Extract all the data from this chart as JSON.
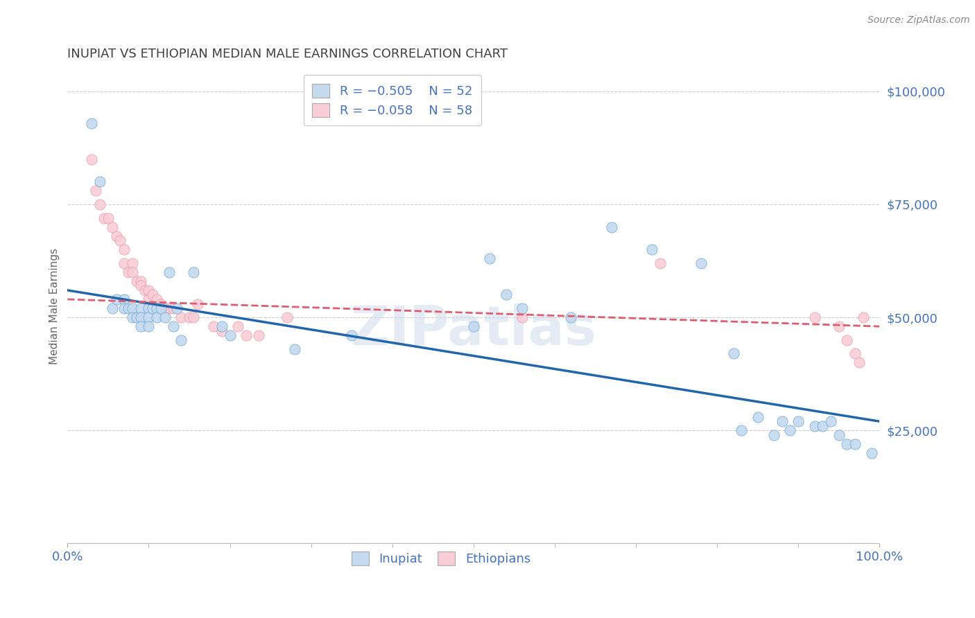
{
  "title": "INUPIAT VS ETHIOPIAN MEDIAN MALE EARNINGS CORRELATION CHART",
  "source": "Source: ZipAtlas.com",
  "ylabel": "Median Male Earnings",
  "watermark": "ZIPatlas",
  "xmin": 0.0,
  "xmax": 1.0,
  "ymin": 0,
  "ymax": 105000,
  "yticks": [
    25000,
    50000,
    75000,
    100000
  ],
  "ytick_labels": [
    "$25,000",
    "$50,000",
    "$75,000",
    "$100,000"
  ],
  "xtick_labels": [
    "0.0%",
    "100.0%"
  ],
  "legend_label1": "Inupiat",
  "legend_label2": "Ethiopians",
  "color_inupiat_fill": "#c5d9ef",
  "color_ethiopian_fill": "#f9cdd6",
  "color_inupiat_edge": "#5a9fd4",
  "color_ethiopian_edge": "#e891a3",
  "color_inupiat_line": "#2166ac",
  "color_ethiopian_line": "#e05c6e",
  "title_color": "#404040",
  "axis_label_color": "#666666",
  "tick_label_color": "#4472c4",
  "background_color": "#ffffff",
  "grid_color": "#cccccc",
  "inupiat_x": [
    0.03,
    0.04,
    0.055,
    0.06,
    0.07,
    0.07,
    0.075,
    0.08,
    0.08,
    0.085,
    0.09,
    0.09,
    0.09,
    0.1,
    0.1,
    0.1,
    0.105,
    0.11,
    0.11,
    0.115,
    0.12,
    0.125,
    0.13,
    0.135,
    0.14,
    0.155,
    0.19,
    0.2,
    0.28,
    0.35,
    0.5,
    0.52,
    0.54,
    0.56,
    0.62,
    0.67,
    0.72,
    0.78,
    0.82,
    0.83,
    0.85,
    0.87,
    0.88,
    0.89,
    0.9,
    0.92,
    0.93,
    0.94,
    0.95,
    0.96,
    0.97,
    0.99
  ],
  "inupiat_y": [
    93000,
    80000,
    52000,
    54000,
    54000,
    52000,
    52000,
    52000,
    50000,
    50000,
    52000,
    50000,
    48000,
    52000,
    50000,
    48000,
    52000,
    52000,
    50000,
    52000,
    50000,
    60000,
    48000,
    52000,
    45000,
    60000,
    48000,
    46000,
    43000,
    46000,
    48000,
    63000,
    55000,
    52000,
    50000,
    70000,
    65000,
    62000,
    42000,
    25000,
    28000,
    24000,
    27000,
    25000,
    27000,
    26000,
    26000,
    27000,
    24000,
    22000,
    22000,
    20000
  ],
  "ethiopian_x": [
    0.03,
    0.035,
    0.04,
    0.045,
    0.05,
    0.055,
    0.06,
    0.065,
    0.07,
    0.07,
    0.075,
    0.08,
    0.08,
    0.085,
    0.09,
    0.09,
    0.095,
    0.1,
    0.1,
    0.105,
    0.11,
    0.115,
    0.12,
    0.125,
    0.13,
    0.14,
    0.15,
    0.155,
    0.16,
    0.18,
    0.19,
    0.21,
    0.22,
    0.235,
    0.27,
    0.56,
    0.73,
    0.92,
    0.95,
    0.96,
    0.97,
    0.975,
    0.98
  ],
  "ethiopian_y": [
    85000,
    78000,
    75000,
    72000,
    72000,
    70000,
    68000,
    67000,
    65000,
    62000,
    60000,
    62000,
    60000,
    58000,
    58000,
    57000,
    56000,
    56000,
    54000,
    55000,
    54000,
    53000,
    52000,
    52000,
    52000,
    50000,
    50000,
    50000,
    53000,
    48000,
    47000,
    48000,
    46000,
    46000,
    50000,
    50000,
    62000,
    50000,
    48000,
    45000,
    42000,
    40000,
    50000
  ],
  "trend_inupiat_x0": 0.0,
  "trend_inupiat_y0": 56000,
  "trend_inupiat_x1": 1.0,
  "trend_inupiat_y1": 27000,
  "trend_ethiopian_x0": 0.0,
  "trend_ethiopian_y0": 54000,
  "trend_ethiopian_x1": 1.0,
  "trend_ethiopian_y1": 48000
}
